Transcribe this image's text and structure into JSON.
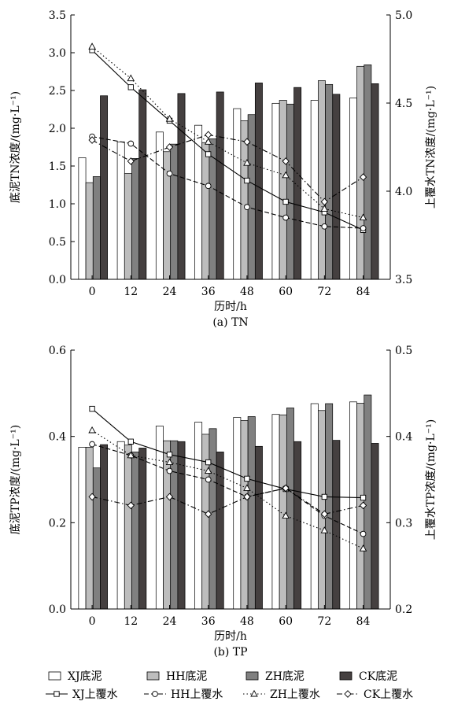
{
  "chart_data": [
    {
      "type": "bar",
      "caption": "(a) TN",
      "xlabel": "历时/h",
      "ylabel_left": "底泥TN浓度/(mg·L⁻¹)",
      "ylabel_right": "上覆水TN浓度/(mg·L⁻¹)",
      "categories": [
        "0",
        "12",
        "24",
        "36",
        "48",
        "60",
        "72",
        "84"
      ],
      "ylim_left": [
        0,
        3.5
      ],
      "yticks_left": [
        "0.0",
        "0.5",
        "1.0",
        "1.5",
        "2.0",
        "2.5",
        "3.0",
        "3.5"
      ],
      "ylim_right": [
        3.5,
        5.0
      ],
      "yticks_right": [
        "3.5",
        "4.0",
        "4.5",
        "5.0"
      ],
      "bar_series": [
        {
          "name": "XJ底泥",
          "color": "#ffffff",
          "values": [
            1.61,
            1.82,
            1.95,
            2.04,
            2.26,
            2.33,
            2.37,
            2.4
          ]
        },
        {
          "name": "HH底泥",
          "color": "#bdbdbd",
          "values": [
            1.28,
            1.4,
            1.69,
            1.81,
            2.1,
            2.37,
            2.63,
            2.82
          ]
        },
        {
          "name": "ZH底泥",
          "color": "#808080",
          "values": [
            1.36,
            1.6,
            1.79,
            1.86,
            2.18,
            2.32,
            2.58,
            2.84
          ]
        },
        {
          "name": "CK底泥",
          "color": "#454040",
          "values": [
            2.43,
            2.51,
            2.46,
            2.48,
            2.6,
            2.54,
            2.45,
            2.59
          ]
        }
      ],
      "line_series": [
        {
          "name": "XJ上覆水",
          "marker": "square",
          "dash": "",
          "values": [
            4.8,
            4.59,
            4.4,
            4.21,
            4.06,
            3.94,
            3.88,
            3.78
          ]
        },
        {
          "name": "HH上覆水",
          "marker": "circle",
          "dash": "6,3",
          "values": [
            4.31,
            4.27,
            4.1,
            4.03,
            3.91,
            3.85,
            3.8,
            3.79
          ]
        },
        {
          "name": "ZH上覆水",
          "marker": "triangle",
          "dash": "1.5,3",
          "values": [
            4.82,
            4.64,
            4.41,
            4.28,
            4.16,
            4.09,
            3.9,
            3.85
          ]
        },
        {
          "name": "CK上覆水",
          "marker": "diamond",
          "dash": "7,3,1.5,3",
          "values": [
            4.29,
            4.17,
            4.25,
            4.32,
            4.28,
            4.17,
            3.94,
            4.08
          ]
        }
      ]
    },
    {
      "type": "bar",
      "caption": "(b) TP",
      "xlabel": "历时/h",
      "ylabel_left": "底泥TP浓度/(mg·L⁻¹)",
      "ylabel_right": "上覆水TP浓度/(mg·L⁻¹)",
      "categories": [
        "0",
        "12",
        "24",
        "36",
        "48",
        "60",
        "72",
        "84"
      ],
      "ylim_left": [
        0,
        0.6
      ],
      "yticks_left": [
        "0.0",
        "0.2",
        "0.4",
        "0.6"
      ],
      "ylim_right": [
        0.2,
        0.5
      ],
      "yticks_right": [
        "0.2",
        "0.3",
        "0.4",
        "0.5"
      ],
      "bar_series": [
        {
          "name": "XJ底泥",
          "color": "#ffffff",
          "values": [
            0.375,
            0.388,
            0.424,
            0.433,
            0.444,
            0.451,
            0.476,
            0.48
          ]
        },
        {
          "name": "HH底泥",
          "color": "#bdbdbd",
          "values": [
            0.375,
            0.38,
            0.39,
            0.405,
            0.437,
            0.45,
            0.46,
            0.477
          ]
        },
        {
          "name": "ZH底泥",
          "color": "#808080",
          "values": [
            0.327,
            0.364,
            0.39,
            0.418,
            0.446,
            0.466,
            0.476,
            0.496
          ]
        },
        {
          "name": "CK底泥",
          "color": "#454040",
          "values": [
            0.381,
            0.373,
            0.388,
            0.364,
            0.377,
            0.388,
            0.391,
            0.384
          ]
        }
      ],
      "line_series": [
        {
          "name": "XJ上覆水",
          "marker": "square",
          "dash": "",
          "values": [
            0.432,
            0.394,
            0.379,
            0.37,
            0.351,
            0.339,
            0.33,
            0.329
          ]
        },
        {
          "name": "HH上覆水",
          "marker": "circle",
          "dash": "6,3",
          "values": [
            0.391,
            0.378,
            0.36,
            0.35,
            0.33,
            0.34,
            0.308,
            0.287
          ]
        },
        {
          "name": "ZH上覆水",
          "marker": "triangle",
          "dash": "1.5,3",
          "values": [
            0.407,
            0.378,
            0.37,
            0.36,
            0.34,
            0.308,
            0.291,
            0.27
          ]
        },
        {
          "name": "CK上覆水",
          "marker": "diamond",
          "dash": "7,3,1.5,3",
          "values": [
            0.33,
            0.32,
            0.33,
            0.31,
            0.33,
            0.34,
            0.31,
            0.32
          ]
        }
      ]
    }
  ],
  "legend": {
    "bars": [
      {
        "label": "XJ底泥",
        "color": "#ffffff"
      },
      {
        "label": "HH底泥",
        "color": "#bdbdbd"
      },
      {
        "label": "ZH底泥",
        "color": "#808080"
      },
      {
        "label": "CK底泥",
        "color": "#454040"
      }
    ],
    "lines": [
      {
        "label": "XJ上覆水",
        "marker": "square",
        "dash": ""
      },
      {
        "label": "HH上覆水",
        "marker": "circle",
        "dash": "6,3"
      },
      {
        "label": "ZH上覆水",
        "marker": "triangle",
        "dash": "1.5,3"
      },
      {
        "label": "CK上覆水",
        "marker": "diamond",
        "dash": "7,3,1.5,3"
      }
    ]
  }
}
